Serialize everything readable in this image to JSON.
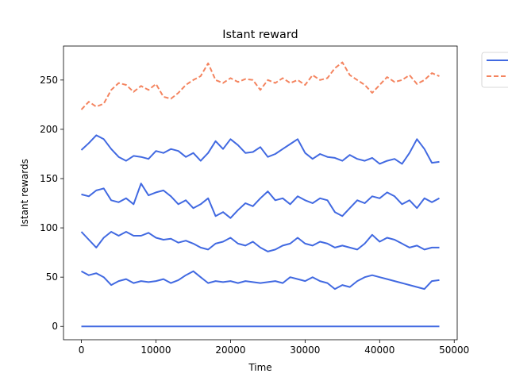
{
  "chart_data": {
    "type": "line",
    "title": "Istant reward",
    "xlabel": "Time",
    "ylabel": "Istant rewards",
    "xlim": [
      -2400,
      50400
    ],
    "ylim": [
      -13.5,
      284.5
    ],
    "xticks": [
      0,
      10000,
      20000,
      30000,
      40000,
      50000
    ],
    "yticks": [
      0,
      50,
      100,
      150,
      200,
      250
    ],
    "xtick_labels": [
      "0",
      "10000",
      "20000",
      "30000",
      "40000",
      "50000"
    ],
    "ytick_labels": [
      "0",
      "50",
      "100",
      "150",
      "200",
      "250"
    ],
    "grid": false,
    "legend": {
      "placement": "outside-top-right",
      "entries": [
        {
          "color": "#4169e1",
          "style": "solid"
        },
        {
          "color": "#f4845f",
          "style": "dashed"
        }
      ]
    },
    "series": [
      {
        "color": "#f4845f",
        "style": "dashed",
        "x": [
          0,
          1000,
          2000,
          3000,
          4000,
          5000,
          6000,
          7000,
          8000,
          9000,
          10000,
          11000,
          12000,
          13000,
          14000,
          15000,
          16000,
          17000,
          18000,
          19000,
          20000,
          21000,
          22000,
          23000,
          24000,
          25000,
          26000,
          27000,
          28000,
          29000,
          30000,
          31000,
          32000,
          33000,
          34000,
          35000,
          36000,
          37000,
          38000,
          39000,
          40000,
          41000,
          42000,
          43000,
          44000,
          45000,
          46000,
          47000,
          48000
        ],
        "y": [
          220,
          228,
          223,
          226,
          240,
          247,
          245,
          238,
          244,
          240,
          246,
          233,
          231,
          237,
          245,
          250,
          254,
          267,
          250,
          247,
          252,
          248,
          251,
          250,
          240,
          250,
          247,
          252,
          247,
          250,
          245,
          255,
          250,
          252,
          262,
          268,
          255,
          250,
          245,
          237,
          245,
          253,
          248,
          250,
          255,
          246,
          250,
          257,
          254
        ]
      },
      {
        "color": "#4169e1",
        "style": "solid",
        "x": [
          0,
          1000,
          2000,
          3000,
          4000,
          5000,
          6000,
          7000,
          8000,
          9000,
          10000,
          11000,
          12000,
          13000,
          14000,
          15000,
          16000,
          17000,
          18000,
          19000,
          20000,
          21000,
          22000,
          23000,
          24000,
          25000,
          26000,
          27000,
          28000,
          29000,
          30000,
          31000,
          32000,
          33000,
          34000,
          35000,
          36000,
          37000,
          38000,
          39000,
          40000,
          41000,
          42000,
          43000,
          44000,
          45000,
          46000,
          47000,
          48000
        ],
        "y": [
          179,
          186,
          194,
          190,
          180,
          172,
          168,
          173,
          172,
          170,
          178,
          176,
          180,
          178,
          172,
          176,
          168,
          176,
          188,
          180,
          190,
          184,
          176,
          177,
          182,
          172,
          175,
          180,
          185,
          190,
          176,
          170,
          175,
          172,
          171,
          168,
          174,
          170,
          168,
          171,
          165,
          168,
          170,
          165,
          176,
          190,
          180,
          166,
          167
        ]
      },
      {
        "color": "#4169e1",
        "style": "solid",
        "x": [
          0,
          1000,
          2000,
          3000,
          4000,
          5000,
          6000,
          7000,
          8000,
          9000,
          10000,
          11000,
          12000,
          13000,
          14000,
          15000,
          16000,
          17000,
          18000,
          19000,
          20000,
          21000,
          22000,
          23000,
          24000,
          25000,
          26000,
          27000,
          28000,
          29000,
          30000,
          31000,
          32000,
          33000,
          34000,
          35000,
          36000,
          37000,
          38000,
          39000,
          40000,
          41000,
          42000,
          43000,
          44000,
          45000,
          46000,
          47000,
          48000
        ],
        "y": [
          134,
          132,
          138,
          140,
          128,
          126,
          130,
          124,
          145,
          133,
          136,
          138,
          132,
          124,
          128,
          120,
          124,
          130,
          112,
          116,
          110,
          118,
          125,
          122,
          130,
          137,
          128,
          130,
          124,
          132,
          128,
          125,
          130,
          128,
          116,
          112,
          120,
          128,
          125,
          132,
          130,
          136,
          132,
          124,
          128,
          120,
          130,
          126,
          130
        ]
      },
      {
        "color": "#4169e1",
        "style": "solid",
        "x": [
          0,
          1000,
          2000,
          3000,
          4000,
          5000,
          6000,
          7000,
          8000,
          9000,
          10000,
          11000,
          12000,
          13000,
          14000,
          15000,
          16000,
          17000,
          18000,
          19000,
          20000,
          21000,
          22000,
          23000,
          24000,
          25000,
          26000,
          27000,
          28000,
          29000,
          30000,
          31000,
          32000,
          33000,
          34000,
          35000,
          36000,
          37000,
          38000,
          39000,
          40000,
          41000,
          42000,
          43000,
          44000,
          45000,
          46000,
          47000,
          48000
        ],
        "y": [
          96,
          88,
          80,
          90,
          96,
          92,
          96,
          92,
          92,
          95,
          90,
          88,
          89,
          85,
          87,
          84,
          80,
          78,
          84,
          86,
          90,
          84,
          82,
          86,
          80,
          76,
          78,
          82,
          84,
          90,
          84,
          82,
          86,
          84,
          80,
          82,
          80,
          78,
          84,
          93,
          86,
          90,
          88,
          84,
          80,
          82,
          78,
          80,
          80
        ]
      },
      {
        "color": "#4169e1",
        "style": "solid",
        "x": [
          0,
          1000,
          2000,
          3000,
          4000,
          5000,
          6000,
          7000,
          8000,
          9000,
          10000,
          11000,
          12000,
          13000,
          14000,
          15000,
          16000,
          17000,
          18000,
          19000,
          20000,
          21000,
          22000,
          23000,
          24000,
          25000,
          26000,
          27000,
          28000,
          29000,
          30000,
          31000,
          32000,
          33000,
          34000,
          35000,
          36000,
          37000,
          38000,
          39000,
          40000,
          41000,
          42000,
          43000,
          44000,
          45000,
          46000,
          47000,
          48000
        ],
        "y": [
          56,
          52,
          54,
          50,
          42,
          46,
          48,
          44,
          46,
          45,
          46,
          48,
          44,
          47,
          52,
          56,
          50,
          44,
          46,
          45,
          46,
          44,
          46,
          45,
          44,
          45,
          46,
          44,
          50,
          48,
          46,
          50,
          46,
          44,
          38,
          42,
          40,
          46,
          50,
          52,
          50,
          48,
          46,
          44,
          42,
          40,
          38,
          46,
          47
        ]
      },
      {
        "color": "#4169e1",
        "style": "solid",
        "x": [
          0,
          48000
        ],
        "y": [
          0,
          0
        ]
      }
    ]
  }
}
